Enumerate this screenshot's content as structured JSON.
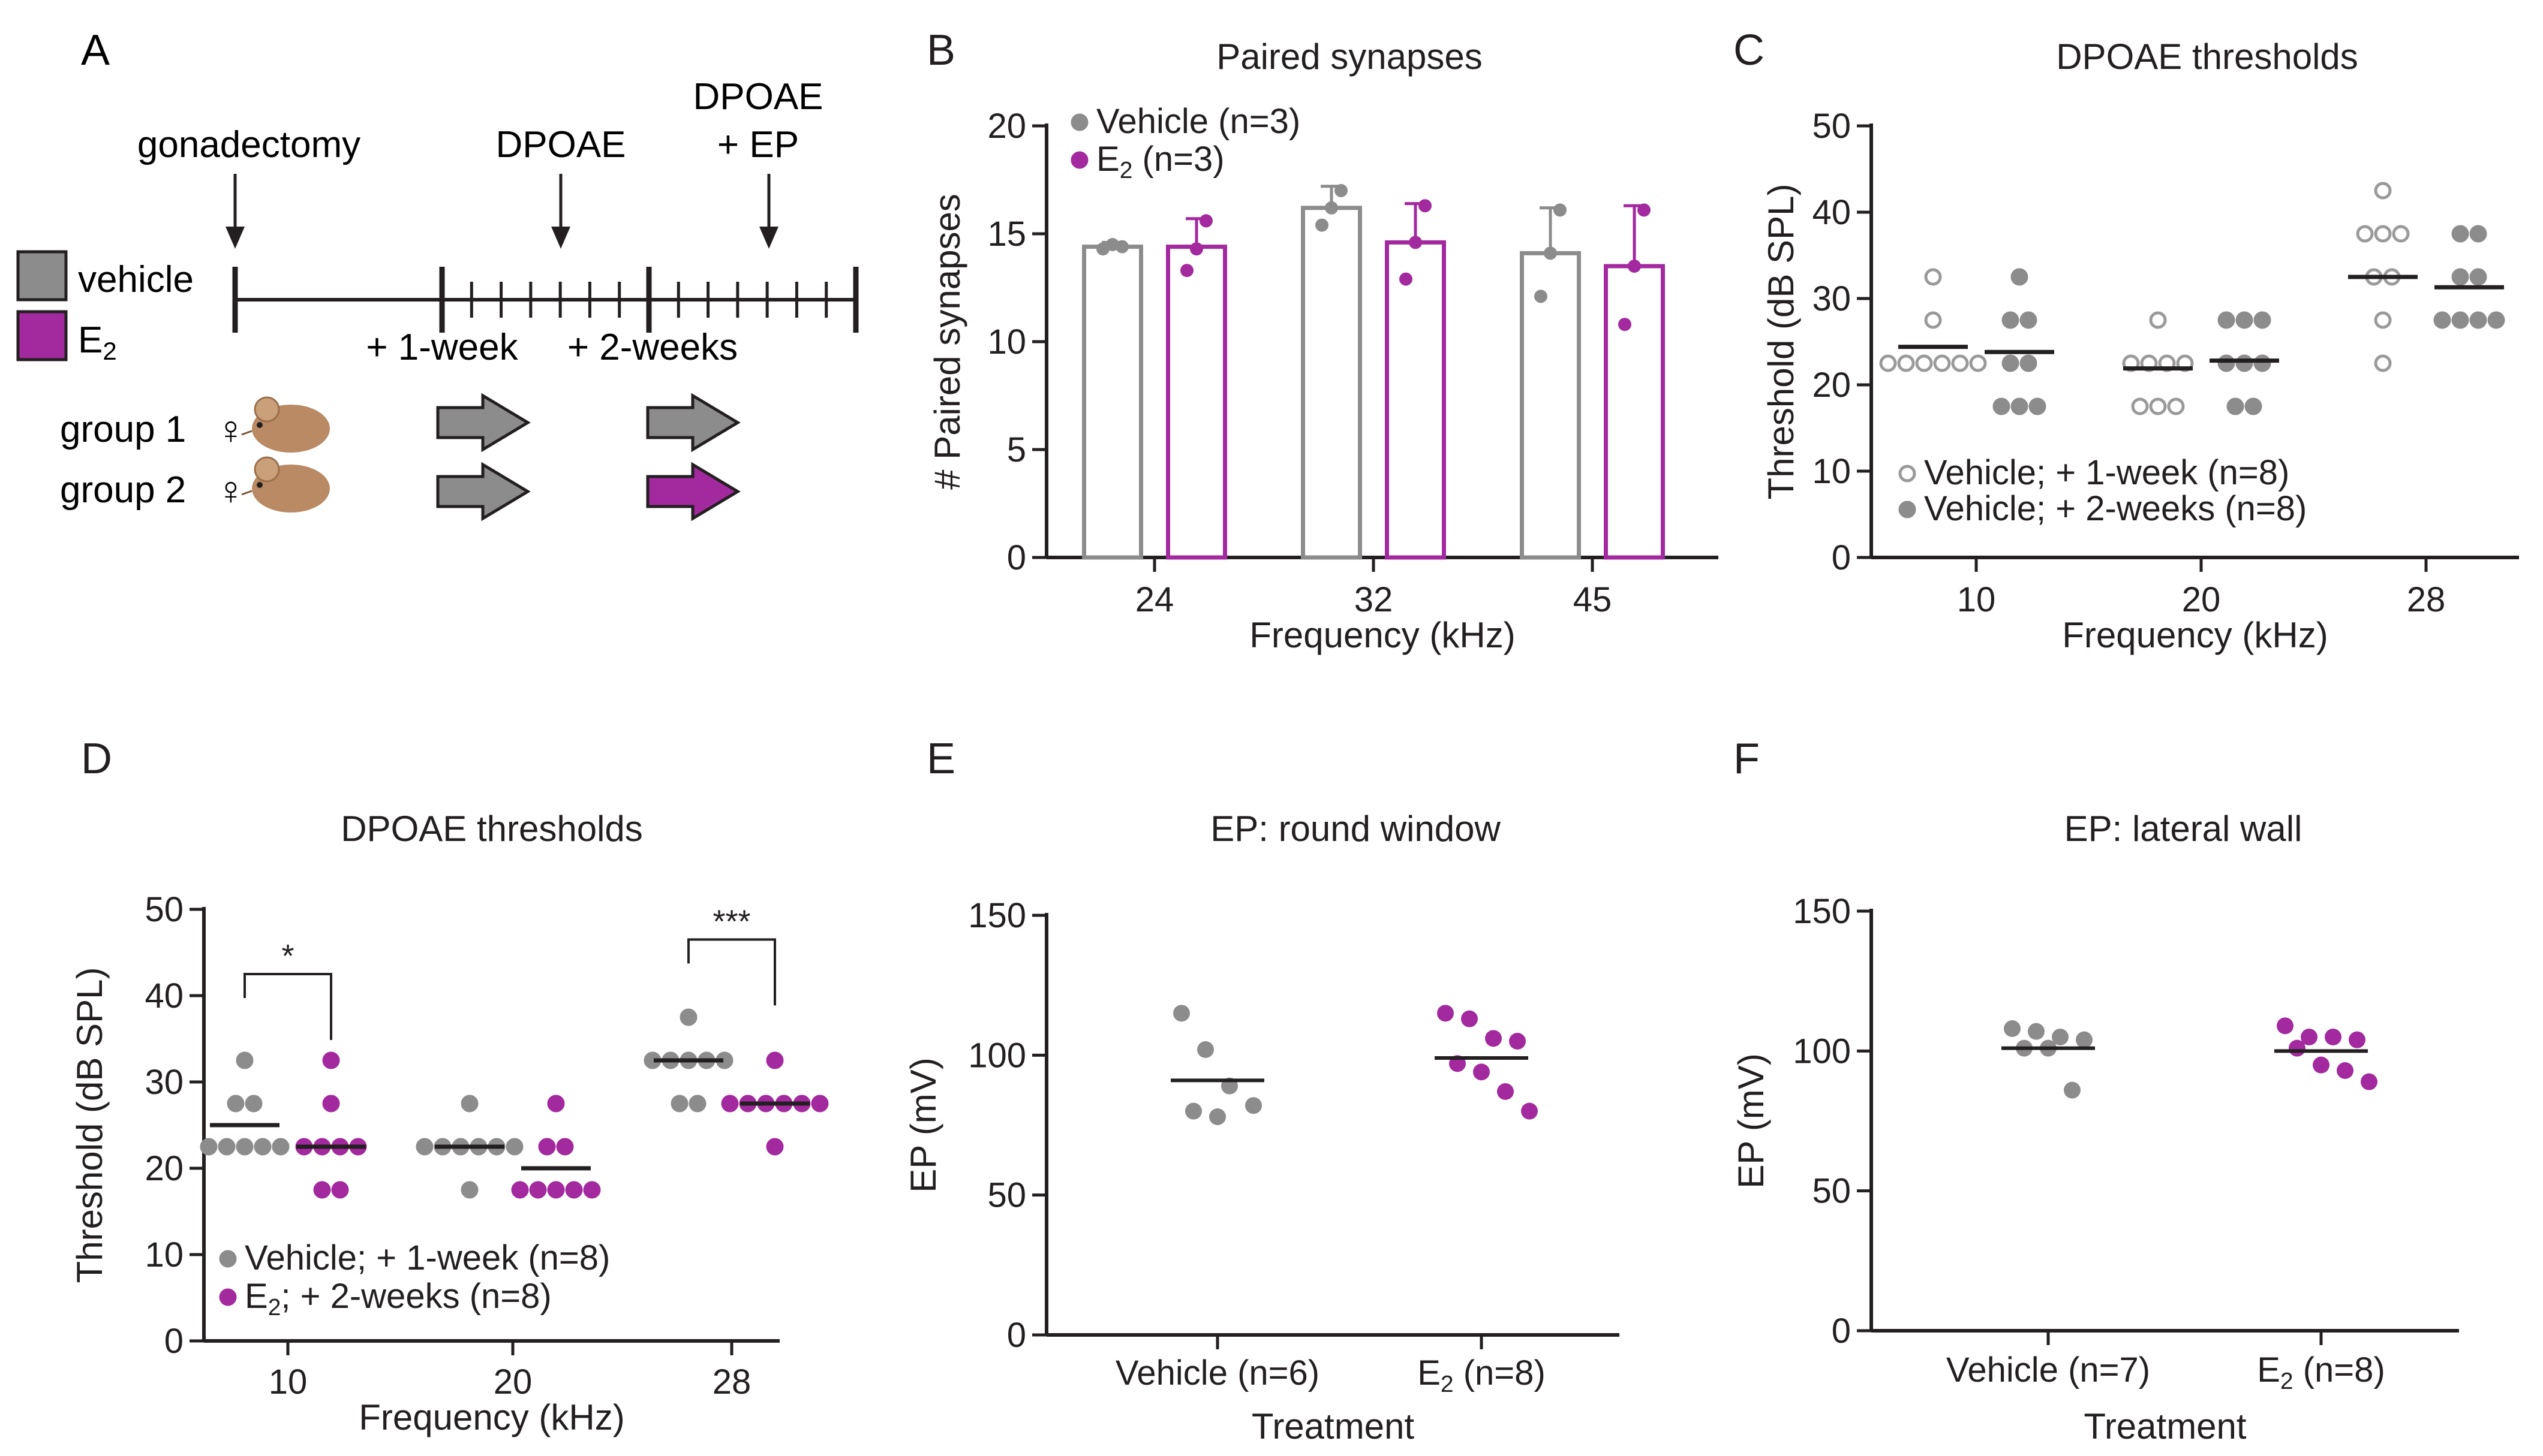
{
  "colors": {
    "vehicle": "#8c8c8c",
    "e2": "#a3299e",
    "axis": "#231f20",
    "mouse": "#b98a63",
    "vehicle_light": "#9a9a9a"
  },
  "panelA": {
    "letter": "A",
    "labels": {
      "gonadectomy": "gonadectomy",
      "dpoae": "DPOAE",
      "dpoae_ep_1": "DPOAE",
      "dpoae_ep_2": "+ EP",
      "vehicle": "vehicle",
      "e2_main": "E",
      "e2_sub": "2",
      "week1": "+ 1-week",
      "week2": "+ 2-weeks",
      "group1": "group 1",
      "group2": "group 2",
      "female": "♀"
    },
    "icons": [
      "arrow-down-icon",
      "mouse-icon",
      "arrow-right-icon",
      "female-symbol-icon"
    ]
  },
  "chart_data": [
    {
      "panel": "B",
      "type": "bar",
      "title": "Paired synapses",
      "xlabel": "Frequency (kHz)",
      "ylabel": "# Paired synapses",
      "ylim": [
        0,
        20
      ],
      "yticks": [
        0,
        5,
        10,
        15,
        20
      ],
      "categories": [
        "24",
        "32",
        "45"
      ],
      "legend": [
        {
          "text": "Vehicle (n=3)",
          "series": "vehicle"
        },
        {
          "text": "E",
          "sub": "2",
          "tail": " (n=3)",
          "series": "e2"
        }
      ],
      "series": [
        {
          "name": "Vehicle (n=3)",
          "key": "vehicle",
          "values": [
            14.4,
            16.2,
            14.1
          ],
          "err": [
            0.2,
            1.0,
            2.1
          ],
          "points": [
            [
              14.3,
              14.5,
              14.4
            ],
            [
              15.4,
              16.2,
              17.0
            ],
            [
              12.1,
              14.1,
              16.1
            ]
          ]
        },
        {
          "name": "E2 (n=3)",
          "key": "e2",
          "values": [
            14.4,
            14.6,
            13.5
          ],
          "err": [
            1.3,
            1.8,
            2.8
          ],
          "points": [
            [
              13.3,
              14.3,
              15.6
            ],
            [
              12.9,
              14.6,
              16.3
            ],
            [
              10.8,
              13.5,
              16.1
            ]
          ]
        }
      ]
    },
    {
      "panel": "C",
      "type": "scatter",
      "title": "DPOAE thresholds",
      "xlabel": "Frequency (kHz)",
      "ylabel": "Threshold (dB SPL)",
      "ylim": [
        0,
        50
      ],
      "yticks": [
        0,
        10,
        20,
        30,
        40,
        50
      ],
      "categories": [
        "10",
        "20",
        "28"
      ],
      "legend": [
        {
          "text": "Vehicle; + 1-week (n=8)",
          "series": "week1"
        },
        {
          "text": "Vehicle; + 2-weeks (n=8)",
          "series": "week2"
        }
      ],
      "series": [
        {
          "name": "Vehicle; + 1-week (n=8)",
          "key": "week1",
          "style": "open",
          "points": [
            [
              32.5,
              27.5,
              22.5,
              22.5,
              22.5,
              22.5,
              22.5,
              22.5
            ],
            [
              27.5,
              22.5,
              22.5,
              22.5,
              22.5,
              17.5,
              17.5,
              17.5
            ],
            [
              42.5,
              37.5,
              37.5,
              37.5,
              32.5,
              32.5,
              27.5,
              22.5
            ]
          ],
          "medians": [
            24.4,
            21.9,
            32.5
          ]
        },
        {
          "name": "Vehicle; + 2-weeks (n=8)",
          "key": "week2",
          "style": "filled",
          "points": [
            [
              32.5,
              27.5,
              27.5,
              22.5,
              22.5,
              17.5,
              17.5,
              17.5
            ],
            [
              27.5,
              27.5,
              27.5,
              22.5,
              22.5,
              22.5,
              17.5,
              17.5
            ],
            [
              37.5,
              37.5,
              32.5,
              32.5,
              27.5,
              27.5,
              27.5,
              27.5
            ]
          ],
          "medians": [
            23.8,
            22.8,
            31.3
          ]
        }
      ]
    },
    {
      "panel": "D",
      "type": "scatter",
      "title": "DPOAE thresholds",
      "xlabel": "Frequency (kHz)",
      "ylabel": "Threshold (dB SPL)",
      "ylim": [
        0,
        50
      ],
      "yticks": [
        0,
        10,
        20,
        30,
        40,
        50
      ],
      "categories": [
        "10",
        "20",
        "28"
      ],
      "legend": [
        {
          "text": "Vehicle; + 1-week (n=8)",
          "series": "vehicle"
        },
        {
          "text": "E",
          "sub": "2",
          "tail": "; + 2-weeks (n=8)",
          "series": "e2"
        }
      ],
      "significance": [
        {
          "category": 0,
          "label": "*",
          "y": 42.5
        },
        {
          "category": 2,
          "label": "***",
          "y": 46.5
        }
      ],
      "series": [
        {
          "name": "Vehicle; + 1-week (n=8)",
          "key": "vehicle",
          "style": "filled",
          "points": [
            [
              32.5,
              27.5,
              27.5,
              22.5,
              22.5,
              22.5,
              22.5,
              22.5
            ],
            [
              27.5,
              22.5,
              22.5,
              22.5,
              22.5,
              22.5,
              22.5,
              17.5
            ],
            [
              37.5,
              32.5,
              32.5,
              32.5,
              32.5,
              32.5,
              27.5,
              27.5
            ]
          ],
          "medians": [
            25.0,
            22.5,
            32.5
          ]
        },
        {
          "name": "E2; + 2-weeks (n=8)",
          "key": "e2",
          "style": "filled",
          "points": [
            [
              32.5,
              27.5,
              22.5,
              22.5,
              22.5,
              22.5,
              17.5,
              17.5
            ],
            [
              27.5,
              22.5,
              22.5,
              17.5,
              17.5,
              17.5,
              17.5,
              17.5
            ],
            [
              32.5,
              27.5,
              27.5,
              27.5,
              27.5,
              27.5,
              27.5,
              22.5
            ]
          ],
          "medians": [
            22.5,
            20.0,
            27.5
          ]
        }
      ]
    },
    {
      "panel": "E",
      "type": "scatter",
      "title": "EP: round window",
      "xlabel": "Treatment",
      "ylabel": "EP (mV)",
      "ylim": [
        0,
        150
      ],
      "yticks": [
        0,
        50,
        100,
        150
      ],
      "categories": [
        {
          "text": "Vehicle (n=6)"
        },
        {
          "text": "E",
          "sub": "2",
          "tail": " (n=8)"
        }
      ],
      "series": [
        {
          "name": "Vehicle (n=6)",
          "key": "vehicle",
          "points": [
            115,
            102,
            89,
            82,
            80,
            78
          ],
          "median": 91
        },
        {
          "name": "E2 (n=8)",
          "key": "e2",
          "points": [
            115,
            113,
            106,
            105,
            97,
            94,
            87,
            80
          ],
          "median": 99
        }
      ]
    },
    {
      "panel": "F",
      "type": "scatter",
      "title": "EP: lateral wall",
      "xlabel": "Treatment",
      "ylabel": "EP (mV)",
      "ylim": [
        0,
        150
      ],
      "yticks": [
        0,
        50,
        100,
        150
      ],
      "categories": [
        {
          "text": "Vehicle (n=7)"
        },
        {
          "text": "E",
          "sub": "2",
          "tail": " (n=8)"
        }
      ],
      "series": [
        {
          "name": "Vehicle (n=7)",
          "key": "vehicle",
          "points": [
            108,
            107,
            105,
            104,
            101,
            101,
            86
          ],
          "median": 101
        },
        {
          "name": "E2 (n=8)",
          "key": "e2",
          "points": [
            109,
            105,
            105,
            104,
            101,
            95,
            93,
            89
          ],
          "median": 100
        }
      ]
    }
  ]
}
